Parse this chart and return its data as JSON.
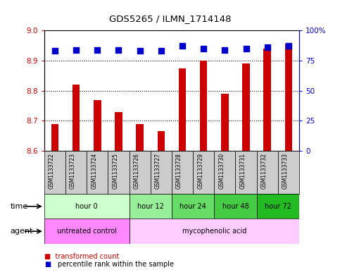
{
  "title": "GDS5265 / ILMN_1714148",
  "samples": [
    "GSM1133722",
    "GSM1133723",
    "GSM1133724",
    "GSM1133725",
    "GSM1133726",
    "GSM1133727",
    "GSM1133728",
    "GSM1133729",
    "GSM1133730",
    "GSM1133731",
    "GSM1133732",
    "GSM1133733"
  ],
  "transformed_counts": [
    8.69,
    8.82,
    8.77,
    8.73,
    8.69,
    8.665,
    8.875,
    8.9,
    8.79,
    8.89,
    8.94,
    8.955
  ],
  "percentile_ranks": [
    83,
    84,
    84,
    84,
    83,
    83,
    87,
    85,
    84,
    85,
    86,
    87
  ],
  "bar_color": "#cc0000",
  "dot_color": "#0000cc",
  "ylim_left": [
    8.6,
    9.0
  ],
  "ylim_right": [
    0,
    100
  ],
  "yticks_left": [
    8.6,
    8.7,
    8.8,
    8.9,
    9.0
  ],
  "yticks_right": [
    0,
    25,
    50,
    75,
    100
  ],
  "ytick_labels_right": [
    "0",
    "25",
    "50",
    "75",
    "100%"
  ],
  "time_groups": [
    {
      "label": "hour 0",
      "start": 0,
      "end": 4,
      "color": "#ccffcc"
    },
    {
      "label": "hour 12",
      "start": 4,
      "end": 6,
      "color": "#99ee99"
    },
    {
      "label": "hour 24",
      "start": 6,
      "end": 8,
      "color": "#66dd66"
    },
    {
      "label": "hour 48",
      "start": 8,
      "end": 10,
      "color": "#44cc44"
    },
    {
      "label": "hour 72",
      "start": 10,
      "end": 12,
      "color": "#22bb22"
    }
  ],
  "agent_groups": [
    {
      "label": "untreated control",
      "start": 0,
      "end": 4,
      "color": "#ff88ff"
    },
    {
      "label": "mycophenolic acid",
      "start": 4,
      "end": 12,
      "color": "#ffccff"
    }
  ],
  "bar_width": 0.35,
  "dot_size": 35,
  "ybase": 8.6,
  "sample_label_color": "#cccccc",
  "grid_yticks": [
    8.7,
    8.8,
    8.9
  ]
}
